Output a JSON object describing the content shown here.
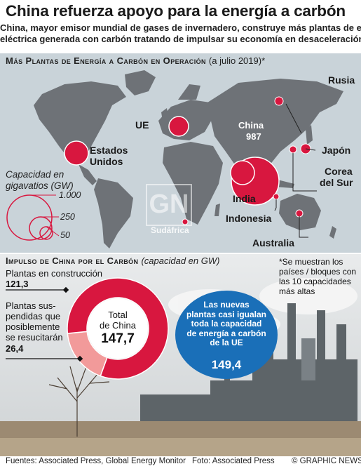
{
  "header": {
    "title": "China refuerza apoyo para la energía a carbón",
    "subtitle_line1": "China, mayor emisor mundial de gases de invernadero, construye más plantas de energía",
    "subtitle_line2": "eléctrica generada con carbón tratando de impulsar su economía en desaceleración"
  },
  "map_section": {
    "heading": "Más Plantas de Energía a Carbón en Operación",
    "heading_note": "(a julio 2019)*",
    "regions": [
      {
        "name": "Rusia",
        "value": null
      },
      {
        "name": "China",
        "value": "987"
      },
      {
        "name": "UE",
        "value": null
      },
      {
        "name": "Estados Unidos",
        "value": null
      },
      {
        "name": "Japón",
        "value": null
      },
      {
        "name": "Corea del Sur",
        "value": null
      },
      {
        "name": "India",
        "value": null
      },
      {
        "name": "Indonesia",
        "value": null
      },
      {
        "name": "Sudáfrica",
        "value": null
      },
      {
        "name": "Australia",
        "value": null
      }
    ],
    "labels": {
      "rusia": "Rusia",
      "china": "China",
      "china_value": "987",
      "ue": "UE",
      "eeuu_1": "Estados",
      "eeuu_2": "Unidos",
      "japon": "Japón",
      "corea_1": "Corea",
      "corea_2": "del Sur",
      "india": "India",
      "indonesia": "Indonesia",
      "sudafrica": "Sudáfrica",
      "australia": "Australia"
    },
    "legend": {
      "title_1": "Capacidad en",
      "title_2": "gigavatios (GW)",
      "values": [
        "1.000",
        "250",
        "50"
      ]
    },
    "watermark": "GN",
    "colors": {
      "bubble": "#d8173f",
      "map_bg": "#c9d3d9",
      "land": "#6e7277"
    }
  },
  "impulse_section": {
    "heading": "Impulso de China por el Carbón",
    "heading_note": "(capacidad en GW)",
    "construction_label": "Plantas en construcción",
    "construction_value": "121,3",
    "suspended_label_1": "Plantas sus-",
    "suspended_label_2": "pendidas que",
    "suspended_label_3": "posiblemente",
    "suspended_label_4": "se resucitarán",
    "suspended_value": "26,4",
    "total_label_1": "Total",
    "total_label_2": "de China",
    "total_value": "147,7",
    "footnote_1": "*Se muestran los",
    "footnote_2": "países / bloques con",
    "footnote_3": "las 10 capacidades",
    "footnote_4": "más altas",
    "bubble_1": "Las nuevas",
    "bubble_2": "plantas casi igualan",
    "bubble_3": "toda la capacidad",
    "bubble_4": "de energía a carbón",
    "bubble_5": "de la UE",
    "bubble_value": "149,4"
  },
  "chart_data": {
    "type": "pie",
    "title": "Impulso de China por el Carbón",
    "categories": [
      "Plantas en construcción",
      "Plantas suspendidas que posiblemente se resucitarán"
    ],
    "values": [
      121.3,
      26.4
    ],
    "total": 147.7,
    "colors": [
      "#d8173f",
      "#f29a9a"
    ]
  },
  "footer": {
    "sources": "Fuentes: Associated Press, Global Energy Monitor",
    "photo": "Foto: Associated Press",
    "credit": "© GRAPHIC NEWS"
  }
}
